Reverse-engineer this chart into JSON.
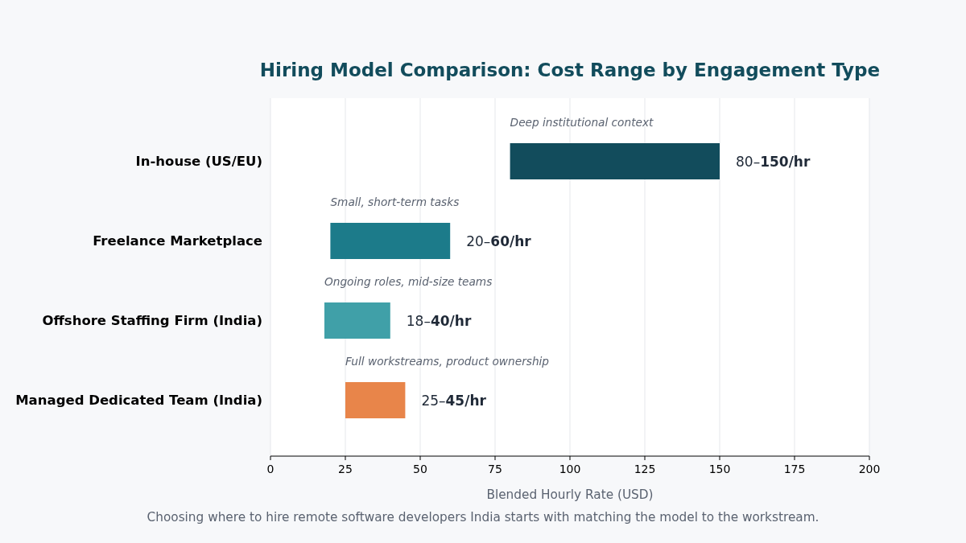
{
  "chart_data": {
    "type": "bar",
    "orientation": "horizontal",
    "title": "Hiring Model Comparison: Cost Range by Engagement Type",
    "xlabel": "Blended Hourly Rate (USD)",
    "categories": [
      "In-house (US/EU)",
      "Freelance Marketplace",
      "Offshore Staffing Firm (India)",
      "Managed Dedicated Team (India)"
    ],
    "base": [
      80,
      20,
      18,
      25
    ],
    "values": [
      70,
      40,
      22,
      20
    ],
    "colors": [
      "#124c5c",
      "#1c7b8a",
      "#40a0a8",
      "#e8854a"
    ],
    "value_labels": [
      "80–150/hr",
      "20–60/hr",
      "18–40/hr",
      "25–45/hr"
    ],
    "xlim": [
      0,
      200
    ],
    "xticks": [
      0,
      25,
      50,
      75,
      100,
      125,
      150,
      175,
      200
    ],
    "grid": "x",
    "annotations": [
      "Deep institutional context",
      "Small, short-term tasks",
      "Ongoing roles, mid-size teams",
      "Full workstreams, product ownership",
      "Choosing where to hire remote software developers India starts with matching the model to the workstream."
    ]
  }
}
